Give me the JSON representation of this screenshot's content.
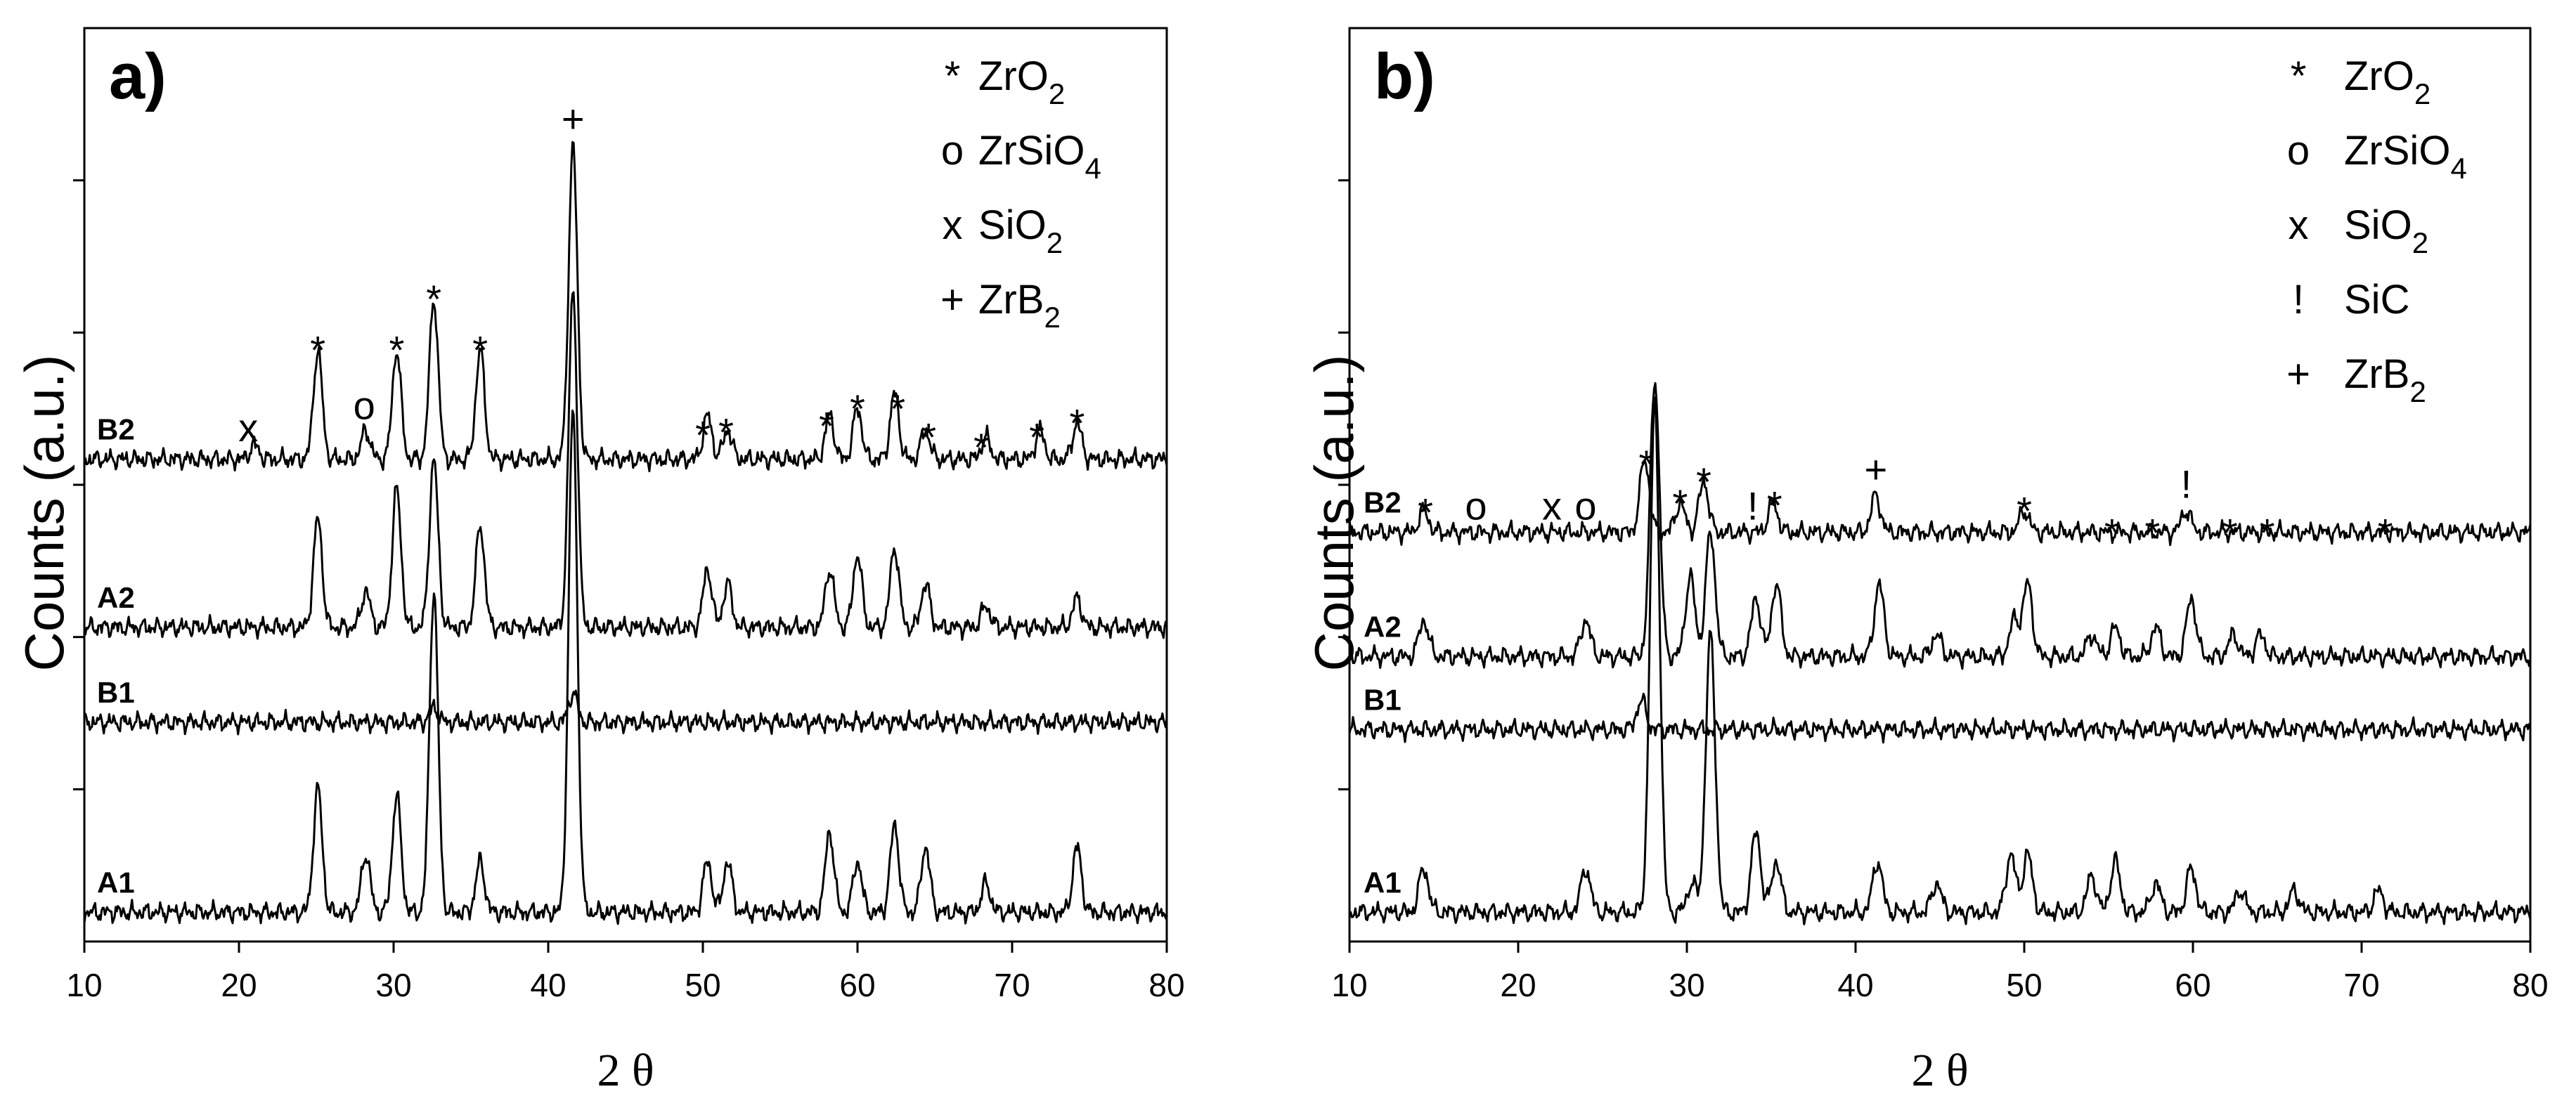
{
  "chart_data": [
    {
      "type": "line",
      "panel_label": "a)",
      "xlabel": "2 θ",
      "ylabel": "Counts (a.u.)",
      "xlim": [
        10,
        80
      ],
      "xticks": [
        10,
        20,
        30,
        40,
        50,
        60,
        70,
        80
      ],
      "legend": [
        {
          "symbol": "*",
          "name": "ZrO",
          "sub": "2"
        },
        {
          "symbol": "o",
          "name": "ZrSiO",
          "sub": "4"
        },
        {
          "symbol": "x",
          "name": "SiO",
          "sub": "2"
        },
        {
          "symbol": "+",
          "name": "ZrB",
          "sub": "2"
        }
      ],
      "series": [
        {
          "name": "A1",
          "baseline": 0.04,
          "peaks": [
            [
              25.1,
              0.17
            ],
            [
              28.2,
              0.08
            ],
            [
              30.2,
              0.16
            ],
            [
              32.6,
              0.44
            ],
            [
              35.6,
              0.07
            ],
            [
              41.6,
              0.69
            ],
            [
              50.3,
              0.07
            ],
            [
              51.6,
              0.07
            ],
            [
              58.2,
              0.11
            ],
            [
              60.0,
              0.07
            ],
            [
              62.4,
              0.12
            ],
            [
              64.4,
              0.09
            ],
            [
              68.3,
              0.04
            ],
            [
              74.2,
              0.09
            ]
          ]
        },
        {
          "name": "B1",
          "baseline": 0.3,
          "peaks": [
            [
              32.6,
              0.02
            ],
            [
              41.6,
              0.04
            ]
          ]
        },
        {
          "name": "A2",
          "baseline": 0.43,
          "peaks": [
            [
              25.1,
              0.15
            ],
            [
              28.2,
              0.05
            ],
            [
              30.2,
              0.19
            ],
            [
              32.6,
              0.23
            ],
            [
              35.6,
              0.14
            ],
            [
              41.6,
              0.46
            ],
            [
              50.3,
              0.08
            ],
            [
              51.6,
              0.06
            ],
            [
              58.2,
              0.08
            ],
            [
              60.0,
              0.1
            ],
            [
              62.4,
              0.11
            ],
            [
              64.4,
              0.06
            ],
            [
              68.3,
              0.03
            ],
            [
              74.2,
              0.04
            ]
          ]
        },
        {
          "name": "B2",
          "baseline": 0.66,
          "peaks": [
            [
              21.0,
              0.02
            ],
            [
              25.1,
              0.15
            ],
            [
              28.2,
              0.04
            ],
            [
              30.2,
              0.15
            ],
            [
              32.6,
              0.22
            ],
            [
              35.6,
              0.15
            ],
            [
              41.6,
              0.43
            ],
            [
              50.3,
              0.06
            ],
            [
              51.6,
              0.04
            ],
            [
              58.2,
              0.06
            ],
            [
              60.0,
              0.07
            ],
            [
              62.4,
              0.09
            ],
            [
              64.4,
              0.04
            ],
            [
              68.3,
              0.03
            ],
            [
              71.8,
              0.04
            ],
            [
              74.2,
              0.05
            ]
          ]
        }
      ],
      "annotations": [
        {
          "symbol": "x",
          "x": 20.6
        },
        {
          "symbol": "*",
          "x": 25.1
        },
        {
          "symbol": "o",
          "x": 28.1
        },
        {
          "symbol": "*",
          "x": 30.2
        },
        {
          "symbol": "*",
          "x": 32.6
        },
        {
          "symbol": "*",
          "x": 35.6
        },
        {
          "symbol": "+",
          "x": 41.6
        },
        {
          "symbol": "*",
          "x": 50.0
        },
        {
          "symbol": "*",
          "x": 51.5
        },
        {
          "symbol": "*",
          "x": 58.0
        },
        {
          "symbol": "*",
          "x": 60.0
        },
        {
          "symbol": "*",
          "x": 62.6
        },
        {
          "symbol": "*",
          "x": 64.6
        },
        {
          "symbol": "*",
          "x": 68.0
        },
        {
          "symbol": "*",
          "x": 71.6
        },
        {
          "symbol": "*",
          "x": 74.2
        }
      ]
    },
    {
      "type": "line",
      "panel_label": "b)",
      "xlabel": "2 θ",
      "ylabel": "Counts (a.u.)",
      "xlim": [
        10,
        80
      ],
      "xticks": [
        10,
        20,
        30,
        40,
        50,
        60,
        70,
        80
      ],
      "legend": [
        {
          "symbol": "*",
          "name": "ZrO",
          "sub": "2"
        },
        {
          "symbol": "o",
          "name": "ZrSiO",
          "sub": "4"
        },
        {
          "symbol": "x",
          "name": "SiO",
          "sub": "2"
        },
        {
          "symbol": "!",
          "name": "SiC",
          "sub": ""
        },
        {
          "symbol": "+",
          "name": "ZrB",
          "sub": "2"
        }
      ],
      "series": [
        {
          "name": "A1",
          "baseline": 0.04,
          "peaks": [
            [
              14.4,
              0.06
            ],
            [
              24.0,
              0.06
            ],
            [
              28.1,
              0.7
            ],
            [
              30.3,
              0.04
            ],
            [
              31.4,
              0.38
            ],
            [
              34.1,
              0.11
            ],
            [
              35.3,
              0.07
            ],
            [
              41.3,
              0.07
            ],
            [
              44.8,
              0.04
            ],
            [
              49.2,
              0.08
            ],
            [
              50.2,
              0.08
            ],
            [
              54.0,
              0.05
            ],
            [
              55.4,
              0.07
            ],
            [
              57.8,
              0.04
            ],
            [
              59.9,
              0.06
            ],
            [
              62.8,
              0.03
            ],
            [
              66.0,
              0.03
            ],
            [
              71.0,
              0.03
            ]
          ]
        },
        {
          "name": "B1",
          "baseline": 0.29,
          "peaks": [
            [
              27.3,
              0.04
            ]
          ]
        },
        {
          "name": "A2",
          "baseline": 0.39,
          "peaks": [
            [
              14.4,
              0.05
            ],
            [
              24.0,
              0.05
            ],
            [
              28.1,
              0.38
            ],
            [
              30.2,
              0.11
            ],
            [
              31.4,
              0.17
            ],
            [
              34.1,
              0.08
            ],
            [
              35.3,
              0.1
            ],
            [
              41.4,
              0.1
            ],
            [
              44.8,
              0.03
            ],
            [
              49.4,
              0.05
            ],
            [
              50.2,
              0.1
            ],
            [
              54.0,
              0.03
            ],
            [
              55.4,
              0.04
            ],
            [
              57.8,
              0.04
            ],
            [
              59.9,
              0.08
            ],
            [
              62.4,
              0.03
            ],
            [
              64.0,
              0.03
            ]
          ]
        },
        {
          "name": "B2",
          "baseline": 0.56,
          "peaks": [
            [
              14.4,
              0.03
            ],
            [
              27.5,
              0.1
            ],
            [
              29.6,
              0.04
            ],
            [
              31.0,
              0.07
            ],
            [
              35.1,
              0.04
            ],
            [
              41.2,
              0.05
            ],
            [
              50.0,
              0.03
            ],
            [
              59.6,
              0.03
            ]
          ]
        }
      ],
      "annotations": [
        {
          "symbol": "*",
          "x": 14.5
        },
        {
          "symbol": "o",
          "x": 17.5
        },
        {
          "symbol": "x",
          "x": 22.0
        },
        {
          "symbol": "o",
          "x": 24.0
        },
        {
          "symbol": "*",
          "x": 27.6
        },
        {
          "symbol": "*",
          "x": 29.6
        },
        {
          "symbol": "*",
          "x": 31.0
        },
        {
          "symbol": "!",
          "x": 33.9
        },
        {
          "symbol": "*",
          "x": 35.2
        },
        {
          "symbol": "+",
          "x": 41.2
        },
        {
          "symbol": "*",
          "x": 50.0
        },
        {
          "symbol": "*",
          "x": 55.2
        },
        {
          "symbol": "*",
          "x": 57.6
        },
        {
          "symbol": "!",
          "x": 59.6
        },
        {
          "symbol": "*",
          "x": 62.2
        },
        {
          "symbol": "*",
          "x": 64.4
        },
        {
          "symbol": "*",
          "x": 71.4
        }
      ]
    }
  ]
}
